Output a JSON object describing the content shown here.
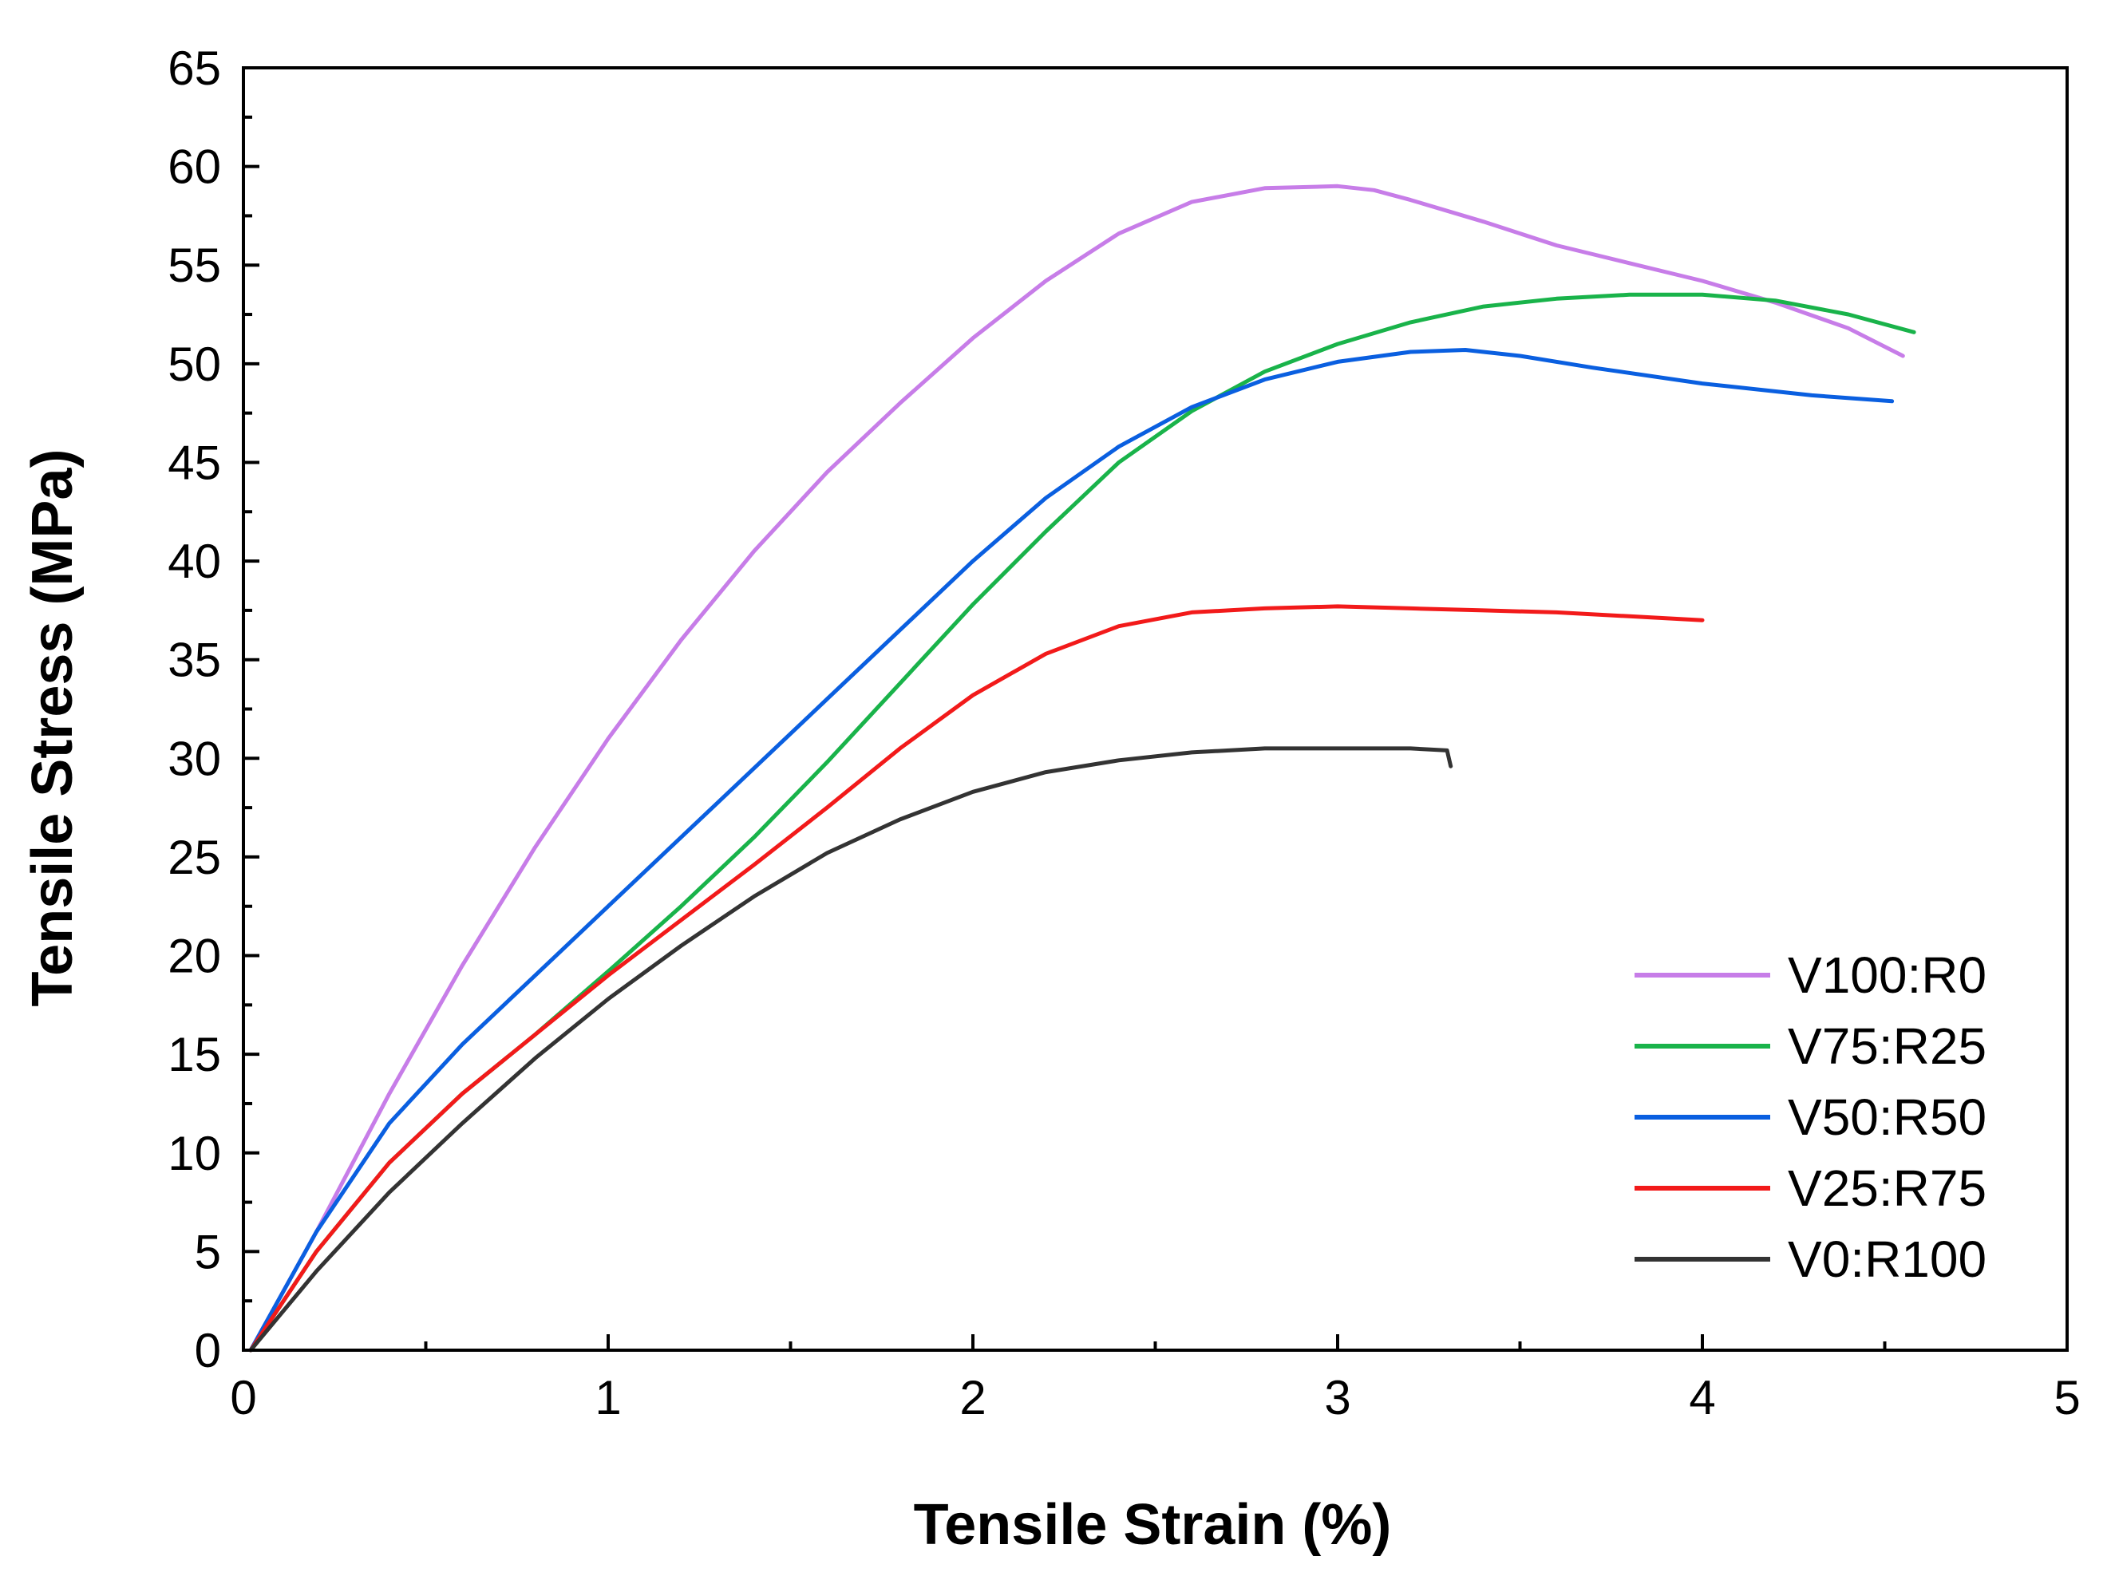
{
  "chart_data": {
    "type": "line",
    "title": "",
    "xlabel": "Tensile Strain (%)",
    "ylabel": "Tensile Stress (MPa)",
    "xlim": [
      0,
      5
    ],
    "ylim": [
      0,
      65
    ],
    "x_ticks": [
      0,
      1,
      2,
      3,
      4,
      5
    ],
    "y_ticks": [
      0,
      5,
      10,
      15,
      20,
      25,
      30,
      35,
      40,
      45,
      50,
      55,
      60,
      65
    ],
    "grid": false,
    "legend_position": "bottom-right",
    "series": [
      {
        "name": "V100:R0",
        "color": "#c77de8",
        "points": [
          [
            0.02,
            0
          ],
          [
            0.2,
            6
          ],
          [
            0.4,
            13
          ],
          [
            0.6,
            19.5
          ],
          [
            0.8,
            25.5
          ],
          [
            1.0,
            31
          ],
          [
            1.2,
            36
          ],
          [
            1.4,
            40.5
          ],
          [
            1.6,
            44.5
          ],
          [
            1.8,
            48
          ],
          [
            2.0,
            51.3
          ],
          [
            2.2,
            54.2
          ],
          [
            2.4,
            56.6
          ],
          [
            2.6,
            58.2
          ],
          [
            2.8,
            58.9
          ],
          [
            3.0,
            59.0
          ],
          [
            3.1,
            58.8
          ],
          [
            3.2,
            58.3
          ],
          [
            3.4,
            57.2
          ],
          [
            3.6,
            56.0
          ],
          [
            3.8,
            55.1
          ],
          [
            4.0,
            54.2
          ],
          [
            4.2,
            53.1
          ],
          [
            4.4,
            51.8
          ],
          [
            4.55,
            50.4
          ]
        ]
      },
      {
        "name": "V75:R25",
        "color": "#19b34a",
        "points": [
          [
            0.02,
            0
          ],
          [
            0.2,
            5
          ],
          [
            0.4,
            9.5
          ],
          [
            0.6,
            13
          ],
          [
            0.8,
            16
          ],
          [
            1.0,
            19.2
          ],
          [
            1.2,
            22.5
          ],
          [
            1.4,
            26
          ],
          [
            1.6,
            29.8
          ],
          [
            1.8,
            33.8
          ],
          [
            2.0,
            37.8
          ],
          [
            2.2,
            41.5
          ],
          [
            2.4,
            45
          ],
          [
            2.6,
            47.6
          ],
          [
            2.8,
            49.6
          ],
          [
            3.0,
            51
          ],
          [
            3.2,
            52.1
          ],
          [
            3.4,
            52.9
          ],
          [
            3.6,
            53.3
          ],
          [
            3.8,
            53.5
          ],
          [
            4.0,
            53.5
          ],
          [
            4.2,
            53.2
          ],
          [
            4.4,
            52.5
          ],
          [
            4.58,
            51.6
          ]
        ]
      },
      {
        "name": "V50:R50",
        "color": "#0a5fe0",
        "points": [
          [
            0.02,
            0
          ],
          [
            0.2,
            6
          ],
          [
            0.4,
            11.5
          ],
          [
            0.6,
            15.5
          ],
          [
            0.8,
            19
          ],
          [
            1.0,
            22.5
          ],
          [
            1.2,
            26
          ],
          [
            1.4,
            29.5
          ],
          [
            1.6,
            33
          ],
          [
            1.8,
            36.5
          ],
          [
            2.0,
            40
          ],
          [
            2.2,
            43.2
          ],
          [
            2.4,
            45.8
          ],
          [
            2.6,
            47.8
          ],
          [
            2.8,
            49.2
          ],
          [
            3.0,
            50.1
          ],
          [
            3.2,
            50.6
          ],
          [
            3.35,
            50.7
          ],
          [
            3.5,
            50.4
          ],
          [
            3.7,
            49.8
          ],
          [
            4.0,
            49.0
          ],
          [
            4.3,
            48.4
          ],
          [
            4.52,
            48.1
          ]
        ]
      },
      {
        "name": "V25:R75",
        "color": "#f21a1a",
        "points": [
          [
            0.02,
            0
          ],
          [
            0.2,
            5
          ],
          [
            0.4,
            9.5
          ],
          [
            0.6,
            13
          ],
          [
            0.8,
            16
          ],
          [
            1.0,
            19
          ],
          [
            1.2,
            21.8
          ],
          [
            1.4,
            24.6
          ],
          [
            1.6,
            27.5
          ],
          [
            1.8,
            30.5
          ],
          [
            2.0,
            33.2
          ],
          [
            2.2,
            35.3
          ],
          [
            2.4,
            36.7
          ],
          [
            2.6,
            37.4
          ],
          [
            2.8,
            37.6
          ],
          [
            3.0,
            37.7
          ],
          [
            3.2,
            37.6
          ],
          [
            3.4,
            37.5
          ],
          [
            3.6,
            37.4
          ],
          [
            3.8,
            37.2
          ],
          [
            4.0,
            37.0
          ]
        ]
      },
      {
        "name": "V0:R100",
        "color": "#333333",
        "points": [
          [
            0.02,
            0
          ],
          [
            0.2,
            4
          ],
          [
            0.4,
            8
          ],
          [
            0.6,
            11.5
          ],
          [
            0.8,
            14.8
          ],
          [
            1.0,
            17.8
          ],
          [
            1.2,
            20.5
          ],
          [
            1.4,
            23
          ],
          [
            1.6,
            25.2
          ],
          [
            1.8,
            26.9
          ],
          [
            2.0,
            28.3
          ],
          [
            2.2,
            29.3
          ],
          [
            2.4,
            29.9
          ],
          [
            2.6,
            30.3
          ],
          [
            2.8,
            30.5
          ],
          [
            3.0,
            30.5
          ],
          [
            3.2,
            30.5
          ],
          [
            3.3,
            30.4
          ],
          [
            3.31,
            29.6
          ]
        ]
      }
    ]
  }
}
